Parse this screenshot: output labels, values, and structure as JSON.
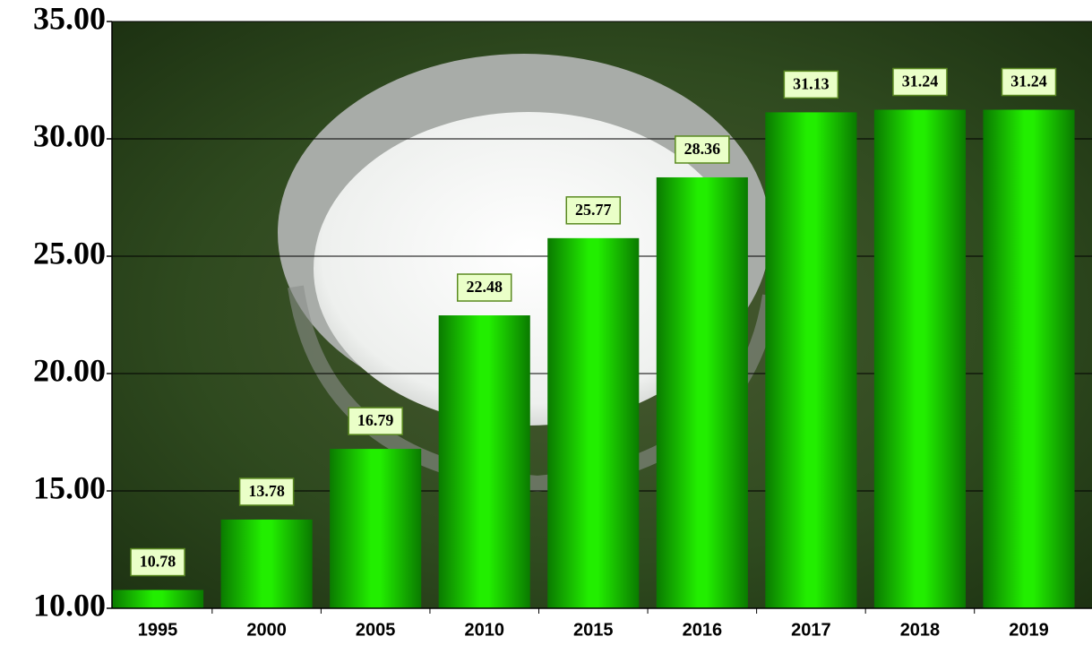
{
  "chart_data": {
    "type": "bar",
    "categories": [
      "1995",
      "2000",
      "2005",
      "2010",
      "2015",
      "2016",
      "2017",
      "2018",
      "2019"
    ],
    "values": [
      10.78,
      13.78,
      16.79,
      22.48,
      25.77,
      28.36,
      31.13,
      31.24,
      31.24
    ],
    "color": "#22dd00",
    "ylim": [
      10,
      35
    ],
    "yticks": [
      {
        "value": 10,
        "label": "10.00"
      },
      {
        "value": 15,
        "label": "15.00"
      },
      {
        "value": 20,
        "label": "20.00"
      },
      {
        "value": 25,
        "label": "25.00"
      },
      {
        "value": 30,
        "label": "30.00"
      },
      {
        "value": 35,
        "label": "35.00"
      }
    ],
    "grid": true
  }
}
